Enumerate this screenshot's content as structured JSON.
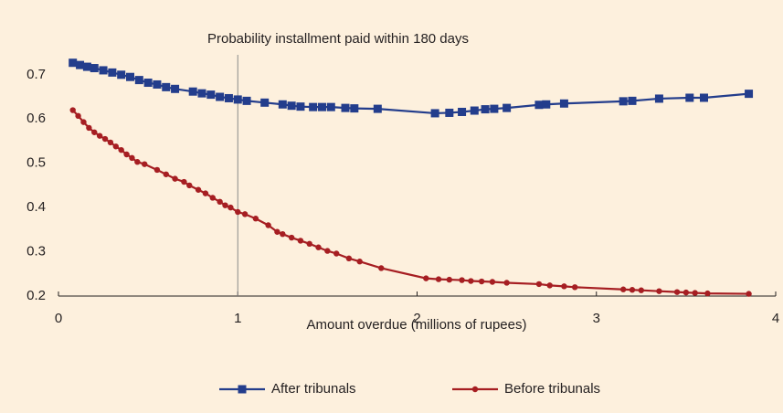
{
  "chart_data": {
    "type": "line",
    "title": "Probability installment paid within 180 days",
    "x_label": "Amount overdue (millions of rupees)",
    "xlim": [
      0,
      4
    ],
    "xticks": [
      0,
      1,
      2,
      3,
      4
    ],
    "ylim": [
      0.2,
      0.745
    ],
    "yticks": [
      0.2,
      0.3,
      0.4,
      0.5,
      0.6,
      0.7
    ],
    "vline": 1,
    "legend": "bottom",
    "series": [
      {
        "name": "After tribunals",
        "color": "#233d8c",
        "marker": "square",
        "x": [
          0.08,
          0.12,
          0.16,
          0.2,
          0.25,
          0.3,
          0.35,
          0.4,
          0.45,
          0.5,
          0.55,
          0.6,
          0.65,
          0.75,
          0.8,
          0.85,
          0.9,
          0.95,
          1.0,
          1.05,
          1.15,
          1.25,
          1.3,
          1.35,
          1.42,
          1.47,
          1.52,
          1.6,
          1.65,
          1.78,
          2.1,
          2.18,
          2.25,
          2.32,
          2.38,
          2.43,
          2.5,
          2.68,
          2.72,
          2.82,
          3.15,
          3.2,
          3.35,
          3.52,
          3.6,
          3.85
        ],
        "values": [
          0.727,
          0.722,
          0.718,
          0.715,
          0.71,
          0.705,
          0.7,
          0.695,
          0.688,
          0.682,
          0.678,
          0.672,
          0.668,
          0.662,
          0.658,
          0.655,
          0.65,
          0.647,
          0.644,
          0.641,
          0.637,
          0.633,
          0.63,
          0.628,
          0.627,
          0.627,
          0.627,
          0.625,
          0.624,
          0.623,
          0.613,
          0.614,
          0.616,
          0.619,
          0.622,
          0.623,
          0.625,
          0.632,
          0.633,
          0.635,
          0.64,
          0.641,
          0.646,
          0.648,
          0.648,
          0.657
        ]
      },
      {
        "name": "Before tribunals",
        "color": "#a61e22",
        "marker": "circle",
        "x": [
          0.08,
          0.11,
          0.14,
          0.17,
          0.2,
          0.23,
          0.26,
          0.29,
          0.32,
          0.35,
          0.38,
          0.41,
          0.44,
          0.48,
          0.55,
          0.6,
          0.65,
          0.7,
          0.73,
          0.78,
          0.82,
          0.86,
          0.9,
          0.93,
          0.96,
          1.0,
          1.04,
          1.1,
          1.17,
          1.22,
          1.25,
          1.3,
          1.35,
          1.4,
          1.45,
          1.5,
          1.55,
          1.62,
          1.68,
          1.8,
          2.05,
          2.12,
          2.18,
          2.25,
          2.3,
          2.36,
          2.42,
          2.5,
          2.68,
          2.74,
          2.82,
          2.88,
          3.15,
          3.2,
          3.25,
          3.35,
          3.45,
          3.5,
          3.55,
          3.62,
          3.85
        ],
        "values": [
          0.62,
          0.607,
          0.593,
          0.58,
          0.57,
          0.562,
          0.555,
          0.547,
          0.538,
          0.53,
          0.52,
          0.512,
          0.503,
          0.498,
          0.485,
          0.475,
          0.465,
          0.458,
          0.45,
          0.44,
          0.432,
          0.422,
          0.413,
          0.405,
          0.4,
          0.39,
          0.385,
          0.375,
          0.36,
          0.345,
          0.34,
          0.332,
          0.325,
          0.318,
          0.31,
          0.302,
          0.296,
          0.285,
          0.278,
          0.263,
          0.24,
          0.238,
          0.237,
          0.236,
          0.234,
          0.233,
          0.232,
          0.23,
          0.227,
          0.224,
          0.222,
          0.22,
          0.215,
          0.214,
          0.213,
          0.211,
          0.209,
          0.208,
          0.207,
          0.206,
          0.205
        ]
      }
    ]
  }
}
